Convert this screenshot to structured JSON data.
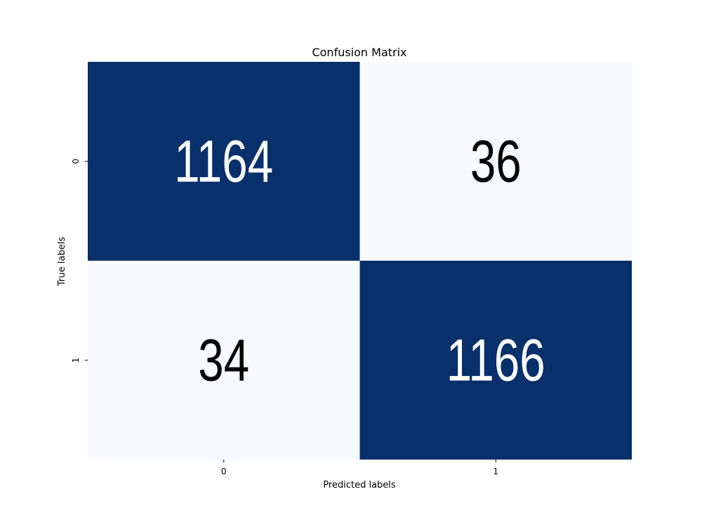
{
  "chart_data": {
    "type": "heatmap",
    "title": "Confusion Matrix",
    "xlabel": "Predicted labels",
    "ylabel": "True labels",
    "x_categories": [
      "0",
      "1"
    ],
    "y_categories": [
      "0",
      "1"
    ],
    "values": [
      [
        1164,
        36
      ],
      [
        34,
        1166
      ]
    ],
    "colormap": "Blues",
    "colors": {
      "high": "#08306b",
      "low": "#f7fbff",
      "text_on_dark": "#ffffff",
      "text_on_light": "#000000"
    },
    "colorbar": false,
    "grid": false
  }
}
